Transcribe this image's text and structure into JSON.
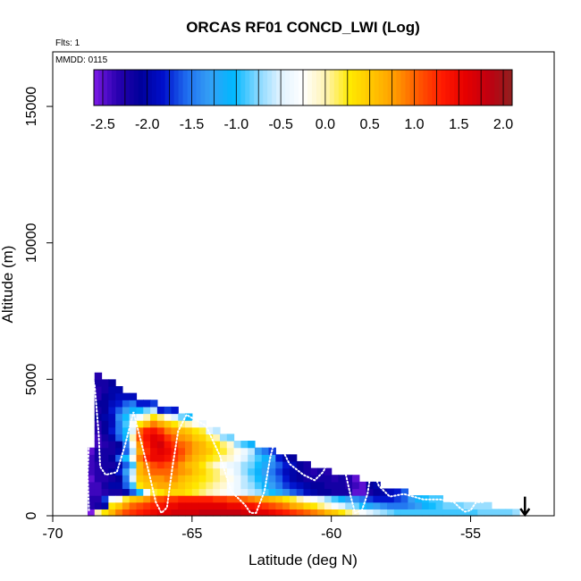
{
  "chart_data": {
    "type": "heatmap",
    "title": "ORCAS RF01 CONCD_LWI (Log)",
    "xlabel": "Latitude (deg N)",
    "ylabel": "Altitude (m)",
    "xlim": [
      -70,
      -52
    ],
    "ylim": [
      0,
      17000
    ],
    "x_ticks": [
      -70,
      -65,
      -60,
      -55
    ],
    "x_tick_labels": [
      "-70",
      "-65",
      "-60",
      "-55"
    ],
    "y_ticks": [
      0,
      5000,
      10000,
      15000
    ],
    "y_tick_labels": [
      "0",
      "5000",
      "10000",
      "15000"
    ],
    "flights_note": "Flts: 1",
    "date_note": "MMDD: 0115",
    "colorbar": {
      "min": -2.6,
      "max": 2.1,
      "ticks": [
        -2.5,
        -2.0,
        -1.5,
        -1.0,
        -0.5,
        0.0,
        0.5,
        1.0,
        1.5,
        2.0
      ],
      "tick_labels": [
        "-2.5",
        "-2.0",
        "-1.5",
        "-1.0",
        "-0.5",
        "0.0",
        "0.5",
        "1.0",
        "1.5",
        "2.0"
      ],
      "palette": [
        "#7d1ae6",
        "#2a00b0",
        "#00009a",
        "#0010cc",
        "#1f6ef0",
        "#34a0f5",
        "#00b8ff",
        "#7fd6ff",
        "#dff2ff",
        "#ffffff",
        "#fff3b0",
        "#ffea00",
        "#ffc400",
        "#ff9900",
        "#ff5500",
        "#ff1a00",
        "#e60000",
        "#c00010",
        "#902020"
      ]
    },
    "grid": {
      "lat_start": -68.75,
      "lat_step": 0.25,
      "alt_step": 250,
      "columns": [
        {
          "lat": -68.75,
          "tops": 2500,
          "vals": [
            -2.6,
            -2.3,
            -2.3,
            -2.4,
            -2.4,
            -2.5,
            -2.4,
            -2.4,
            -2.4,
            -2.5
          ]
        },
        {
          "lat": -68.5,
          "tops": 5250,
          "vals": [
            0.0,
            -2.2,
            -2.3,
            -2.4,
            -2.4,
            -2.3,
            -2.3,
            -2.3,
            -2.2,
            -2.2,
            -2.4,
            -2.4,
            -2.3,
            -2.3,
            -2.1,
            -2.2,
            -2.1,
            -2.3,
            -2.3,
            -2.2,
            -2.3
          ]
        },
        {
          "lat": -68.25,
          "tops": 5000,
          "vals": [
            0.3,
            -2.0,
            -1.7,
            -2.3,
            -2.2,
            -2.3,
            -2.2,
            -2.2,
            -2.2,
            -2.2,
            -2.3,
            -2.2,
            -2.1,
            -2.1,
            -2.0,
            -2.1,
            -2.1,
            -2.1,
            -2.2,
            -2.2
          ]
        },
        {
          "lat": -68.0,
          "tops": 5000,
          "vals": [
            0.6,
            0.3,
            -0.3,
            -2.2,
            -2.0,
            -2.2,
            -2.1,
            -2.2,
            -2.1,
            -2.2,
            -2.2,
            -2.0,
            -1.8,
            -1.9,
            -1.9,
            -1.8,
            -1.9,
            -2.0,
            -2.0,
            -2.1
          ]
        },
        {
          "lat": -67.75,
          "tops": 4750,
          "vals": [
            0.9,
            0.5,
            -0.2,
            -2.2,
            -2.0,
            -2.1,
            -1.8,
            -2.0,
            -1.6,
            -2.0,
            -2.1,
            -1.6,
            -1.5,
            -1.5,
            -1.4,
            -1.6,
            -1.8,
            -1.9,
            -2.0
          ]
        },
        {
          "lat": -67.5,
          "tops": 4500,
          "vals": [
            1.1,
            0.8,
            0.2,
            -2.0,
            -1.6,
            -1.5,
            -1.3,
            -1.6,
            -1.0,
            -1.6,
            -1.5,
            -1.1,
            -1.0,
            -0.9,
            -1.0,
            -1.3,
            -1.6,
            -1.9
          ]
        },
        {
          "lat": -67.25,
          "tops": 4500,
          "vals": [
            1.2,
            1.0,
            0.5,
            -1.6,
            -0.9,
            -0.5,
            -0.6,
            -0.9,
            -0.2,
            -0.6,
            -0.3,
            0.0,
            -0.5,
            -0.3,
            -0.6,
            -1.1,
            -1.5,
            -1.9
          ]
        },
        {
          "lat": -67.0,
          "tops": 4250,
          "vals": [
            1.3,
            1.1,
            0.6,
            -1.0,
            0.3,
            0.5,
            0.6,
            0.6,
            0.9,
            0.7,
            0.8,
            1.1,
            1.0,
            0.3,
            -0.3,
            -1.0,
            -1.8
          ]
        },
        {
          "lat": -66.75,
          "tops": 4250,
          "vals": [
            1.4,
            1.2,
            0.8,
            -0.3,
            0.5,
            0.6,
            0.8,
            0.9,
            1.3,
            1.2,
            1.3,
            1.4,
            1.3,
            0.6,
            0.0,
            -0.8,
            -1.8
          ]
        },
        {
          "lat": -66.5,
          "tops": 4250,
          "vals": [
            1.5,
            1.3,
            1.0,
            0.2,
            0.6,
            0.8,
            1.0,
            1.1,
            1.5,
            1.5,
            1.6,
            1.6,
            1.4,
            0.9,
            0.3,
            -0.6,
            -1.7
          ]
        },
        {
          "lat": -66.25,
          "tops": 4000,
          "vals": [
            1.6,
            1.4,
            1.1,
            0.3,
            0.7,
            0.8,
            1.0,
            1.2,
            1.5,
            1.6,
            1.7,
            1.5,
            1.2,
            0.7,
            0.1,
            -1.8
          ]
        },
        {
          "lat": -66.0,
          "tops": 4000,
          "vals": [
            1.6,
            1.5,
            1.2,
            0.5,
            0.7,
            0.9,
            1.0,
            1.1,
            1.4,
            1.5,
            1.4,
            1.2,
            0.9,
            0.5,
            -0.2,
            -1.7
          ]
        },
        {
          "lat": -65.75,
          "tops": 4000,
          "vals": [
            1.7,
            1.5,
            1.2,
            0.4,
            0.6,
            0.8,
            0.9,
            1.0,
            1.2,
            1.3,
            1.2,
            1.0,
            0.8,
            0.3,
            -0.5,
            -1.8
          ]
        },
        {
          "lat": -65.5,
          "tops": 3750,
          "vals": [
            1.7,
            1.6,
            1.3,
            0.4,
            0.5,
            0.6,
            0.8,
            0.8,
            1.0,
            1.1,
            1.0,
            0.8,
            0.6,
            0.1,
            -0.8
          ]
        },
        {
          "lat": -65.25,
          "tops": 3750,
          "vals": [
            1.7,
            1.6,
            1.3,
            0.3,
            0.4,
            0.5,
            0.7,
            0.6,
            0.8,
            0.9,
            0.9,
            0.7,
            0.5,
            0.0,
            -1.0
          ]
        },
        {
          "lat": -65.0,
          "tops": 3500,
          "vals": [
            1.7,
            1.6,
            1.3,
            0.2,
            0.3,
            0.4,
            0.5,
            0.5,
            0.6,
            0.7,
            0.7,
            0.5,
            0.3,
            -0.2
          ]
        },
        {
          "lat": -64.75,
          "tops": 3500,
          "vals": [
            1.8,
            1.6,
            1.3,
            0.1,
            0.2,
            0.3,
            0.4,
            0.3,
            0.5,
            0.6,
            0.6,
            0.4,
            0.2,
            -0.4
          ]
        },
        {
          "lat": -64.5,
          "tops": 3250,
          "vals": [
            1.8,
            1.6,
            1.3,
            0.0,
            0.1,
            0.2,
            0.2,
            0.1,
            0.3,
            0.5,
            0.4,
            0.2,
            -0.5
          ]
        },
        {
          "lat": -64.25,
          "tops": 3250,
          "vals": [
            1.8,
            1.6,
            1.2,
            -0.1,
            0.0,
            0.1,
            0.1,
            -0.1,
            0.2,
            0.3,
            0.3,
            0.0,
            -0.6
          ]
        },
        {
          "lat": -64.0,
          "tops": 3000,
          "vals": [
            1.8,
            1.6,
            1.2,
            -0.2,
            -0.1,
            0.0,
            -0.1,
            -0.3,
            0.0,
            0.2,
            0.1,
            -0.7
          ]
        },
        {
          "lat": -63.75,
          "tops": 3000,
          "vals": [
            1.8,
            1.5,
            1.1,
            -0.3,
            -0.3,
            -0.2,
            -0.3,
            -0.4,
            -0.1,
            0.0,
            -0.1,
            -0.8
          ]
        },
        {
          "lat": -63.5,
          "tops": 2750,
          "vals": [
            1.8,
            1.5,
            1.1,
            -0.4,
            -0.4,
            -0.4,
            -0.5,
            -0.5,
            -0.3,
            -0.2,
            -0.7
          ]
        },
        {
          "lat": -63.25,
          "tops": 2750,
          "vals": [
            1.7,
            1.4,
            1.0,
            -0.5,
            -0.6,
            -0.6,
            -0.7,
            -0.7,
            -0.5,
            -0.4,
            -0.9
          ]
        },
        {
          "lat": -63.0,
          "tops": 2750,
          "vals": [
            1.7,
            1.4,
            0.9,
            -0.6,
            -0.7,
            -0.8,
            -0.9,
            -0.8,
            -0.7,
            -0.6,
            -1.1
          ]
        },
        {
          "lat": -62.75,
          "tops": 2500,
          "vals": [
            1.6,
            1.3,
            0.8,
            -0.7,
            -0.9,
            -1.0,
            -1.1,
            -1.0,
            -0.9,
            -1.3
          ]
        },
        {
          "lat": -62.5,
          "tops": 2500,
          "vals": [
            1.6,
            1.2,
            0.7,
            -0.9,
            -1.1,
            -1.2,
            -1.3,
            -1.2,
            -1.1,
            -1.5
          ]
        },
        {
          "lat": -62.25,
          "tops": 2500,
          "vals": [
            1.5,
            1.1,
            0.6,
            -1.0,
            -1.3,
            -1.4,
            -1.5,
            -1.4,
            -1.3,
            -1.7
          ]
        },
        {
          "lat": -62.0,
          "tops": 2250,
          "vals": [
            1.4,
            1.0,
            0.5,
            -1.2,
            -1.5,
            -1.6,
            -1.7,
            -1.6,
            -1.8
          ]
        },
        {
          "lat": -61.75,
          "tops": 2250,
          "vals": [
            1.3,
            0.9,
            0.3,
            -1.4,
            -1.7,
            -1.8,
            -1.9,
            -1.8,
            -2.0
          ]
        },
        {
          "lat": -61.5,
          "tops": 2250,
          "vals": [
            1.2,
            0.7,
            0.2,
            -1.6,
            -1.8,
            -2.0,
            -2.0,
            -1.9,
            -2.1
          ]
        },
        {
          "lat": -61.25,
          "tops": 2000,
          "vals": [
            1.1,
            0.6,
            0.0,
            -1.7,
            -1.9,
            -2.1,
            -2.1,
            -2.1
          ]
        },
        {
          "lat": -61.0,
          "tops": 2000,
          "vals": [
            1.0,
            0.4,
            -0.2,
            -1.9,
            -2.0,
            -2.2,
            -2.2,
            -2.2
          ]
        },
        {
          "lat": -60.75,
          "tops": 1750,
          "vals": [
            0.9,
            0.3,
            -0.3,
            -2.0,
            -2.1,
            -2.2,
            -2.3
          ]
        },
        {
          "lat": -60.5,
          "tops": 1750,
          "vals": [
            0.8,
            0.1,
            -0.5,
            -2.1,
            -2.1,
            -2.2,
            -2.2
          ]
        },
        {
          "lat": -60.25,
          "tops": 1750,
          "vals": [
            0.6,
            -0.1,
            -0.7,
            -2.1,
            -2.2,
            -2.2,
            -2.3
          ]
        },
        {
          "lat": -60.0,
          "tops": 1500,
          "vals": [
            0.5,
            -0.3,
            -0.9,
            -2.2,
            -2.2,
            -2.3
          ]
        },
        {
          "lat": -59.75,
          "tops": 1500,
          "vals": [
            0.3,
            -0.5,
            -1.1,
            -2.2,
            -2.2,
            -2.2
          ]
        },
        {
          "lat": -59.5,
          "tops": 1500,
          "vals": [
            0.1,
            -0.7,
            -1.3,
            -2.2,
            -2.3,
            -2.3
          ]
        },
        {
          "lat": -59.25,
          "tops": 1500,
          "vals": [
            -0.1,
            -0.8,
            -1.4,
            -2.5,
            -2.4,
            -2.5
          ]
        },
        {
          "lat": -59.0,
          "tops": 1250,
          "vals": [
            -0.3,
            -1.0,
            -1.5,
            -2.5,
            -2.5
          ]
        },
        {
          "lat": -58.75,
          "tops": 1250,
          "vals": [
            -0.5,
            -1.2,
            -1.7,
            -2.2,
            -2.1
          ]
        },
        {
          "lat": -58.5,
          "tops": 1250,
          "vals": [
            -0.6,
            -1.3,
            -1.8,
            -2.1,
            -2.0
          ]
        },
        {
          "lat": -58.25,
          "tops": 1000,
          "vals": [
            -0.7,
            -1.4,
            -1.8,
            -2.0
          ]
        },
        {
          "lat": -58.0,
          "tops": 1000,
          "vals": [
            -0.8,
            -1.5,
            -1.8,
            -1.9
          ]
        },
        {
          "lat": -57.75,
          "tops": 1000,
          "vals": [
            -0.9,
            -1.5,
            -1.7,
            -1.8
          ]
        },
        {
          "lat": -57.5,
          "tops": 1000,
          "vals": [
            -0.9,
            -1.5,
            -1.6,
            -1.6
          ]
        },
        {
          "lat": -57.25,
          "tops": 750,
          "vals": [
            -0.9,
            -1.4,
            -1.3
          ]
        },
        {
          "lat": -57.0,
          "tops": 750,
          "vals": [
            -0.9,
            -1.3,
            -1.1
          ]
        },
        {
          "lat": -56.75,
          "tops": 750,
          "vals": [
            -0.9,
            -1.1,
            -1.0
          ]
        },
        {
          "lat": -56.5,
          "tops": 750,
          "vals": [
            -0.9,
            -1.0,
            -0.9
          ]
        },
        {
          "lat": -56.25,
          "tops": 750,
          "vals": [
            -0.9,
            -0.9,
            -0.9
          ]
        },
        {
          "lat": -56.0,
          "tops": 500,
          "vals": [
            -0.9,
            -0.8
          ]
        },
        {
          "lat": -55.75,
          "tops": 500,
          "vals": [
            -0.9,
            -0.8
          ]
        },
        {
          "lat": -55.5,
          "tops": 500,
          "vals": [
            -0.9,
            -0.8
          ]
        },
        {
          "lat": -55.25,
          "tops": 500,
          "vals": [
            -0.9,
            -0.7
          ]
        },
        {
          "lat": -55.0,
          "tops": 500,
          "vals": [
            -0.9,
            -0.7
          ]
        },
        {
          "lat": -54.75,
          "tops": 500,
          "vals": [
            -0.8,
            -0.7
          ]
        },
        {
          "lat": -54.5,
          "tops": 500,
          "vals": [
            -0.8,
            -0.7
          ]
        },
        {
          "lat": -54.25,
          "tops": 250,
          "vals": [
            -0.8
          ]
        },
        {
          "lat": -54.0,
          "tops": 250,
          "vals": [
            -0.8
          ]
        },
        {
          "lat": -53.75,
          "tops": 250,
          "vals": [
            -0.8
          ]
        },
        {
          "lat": -53.5,
          "tops": 250,
          "vals": [
            -0.7
          ]
        }
      ]
    },
    "flight_track": [
      [
        -68.7,
        200
      ],
      [
        -68.75,
        1500
      ],
      [
        -68.6,
        5100
      ],
      [
        -68.5,
        4800
      ],
      [
        -68.35,
        3000
      ],
      [
        -68.3,
        1800
      ],
      [
        -68.1,
        1500
      ],
      [
        -67.7,
        1600
      ],
      [
        -67.4,
        2600
      ],
      [
        -67.1,
        3800
      ],
      [
        -66.9,
        3000
      ],
      [
        -66.6,
        1800
      ],
      [
        -66.3,
        500
      ],
      [
        -66.1,
        100
      ],
      [
        -65.9,
        300
      ],
      [
        -65.7,
        1800
      ],
      [
        -65.5,
        3100
      ],
      [
        -65.2,
        3700
      ],
      [
        -64.5,
        3300
      ],
      [
        -64.0,
        2200
      ],
      [
        -63.6,
        900
      ],
      [
        -63.1,
        400
      ],
      [
        -62.9,
        100
      ],
      [
        -62.7,
        100
      ],
      [
        -62.4,
        900
      ],
      [
        -62.2,
        2100
      ],
      [
        -62.0,
        2900
      ],
      [
        -61.5,
        1900
      ],
      [
        -61.0,
        1500
      ],
      [
        -60.6,
        1300
      ],
      [
        -60.3,
        1600
      ],
      [
        -60.0,
        2200
      ],
      [
        -59.7,
        2100
      ],
      [
        -59.5,
        1600
      ],
      [
        -59.3,
        700
      ],
      [
        -59.15,
        100
      ],
      [
        -58.9,
        200
      ],
      [
        -58.7,
        800
      ],
      [
        -58.55,
        1800
      ],
      [
        -58.3,
        1100
      ],
      [
        -57.9,
        700
      ],
      [
        -57.4,
        800
      ],
      [
        -56.7,
        600
      ],
      [
        -56.1,
        600
      ],
      [
        -55.6,
        500
      ],
      [
        -55.4,
        300
      ],
      [
        -55.2,
        150
      ],
      [
        -55.0,
        200
      ],
      [
        -54.8,
        500
      ],
      [
        -54.5,
        500
      ]
    ],
    "arrow": {
      "lat": -53.05,
      "alt_from": 700,
      "alt_to": 0,
      "direction": "down"
    }
  }
}
